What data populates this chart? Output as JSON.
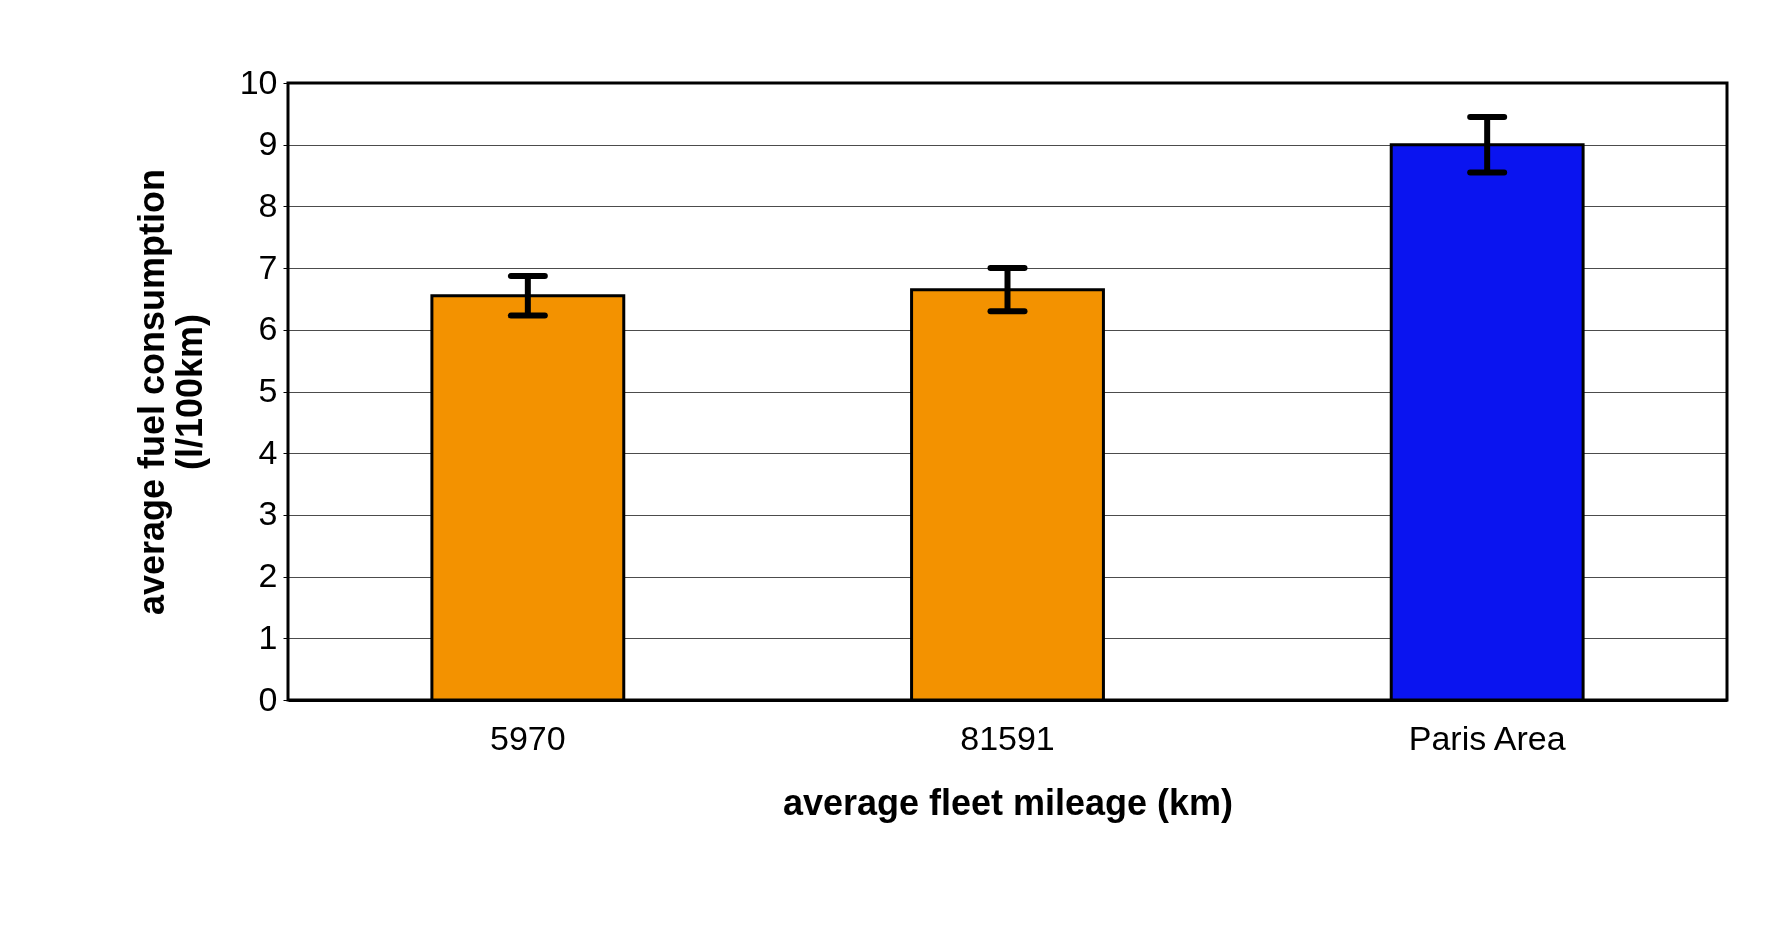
{
  "chart_data": {
    "type": "bar",
    "xlabel": "average fleet mileage (km)",
    "ylabel": "average fuel consumption\n(l/100km)",
    "categories": [
      "5970",
      "81591",
      "Paris Area"
    ],
    "values": [
      6.55,
      6.65,
      9.0
    ],
    "errors": [
      0.32,
      0.35,
      0.45
    ],
    "colors": [
      "#f39200",
      "#f39200",
      "#0a14f0"
    ],
    "ylim": [
      0,
      10
    ],
    "yticks": [
      0,
      1,
      2,
      3,
      4,
      5,
      6,
      7,
      8,
      9,
      10
    ],
    "grid": "y",
    "legend": false
  }
}
